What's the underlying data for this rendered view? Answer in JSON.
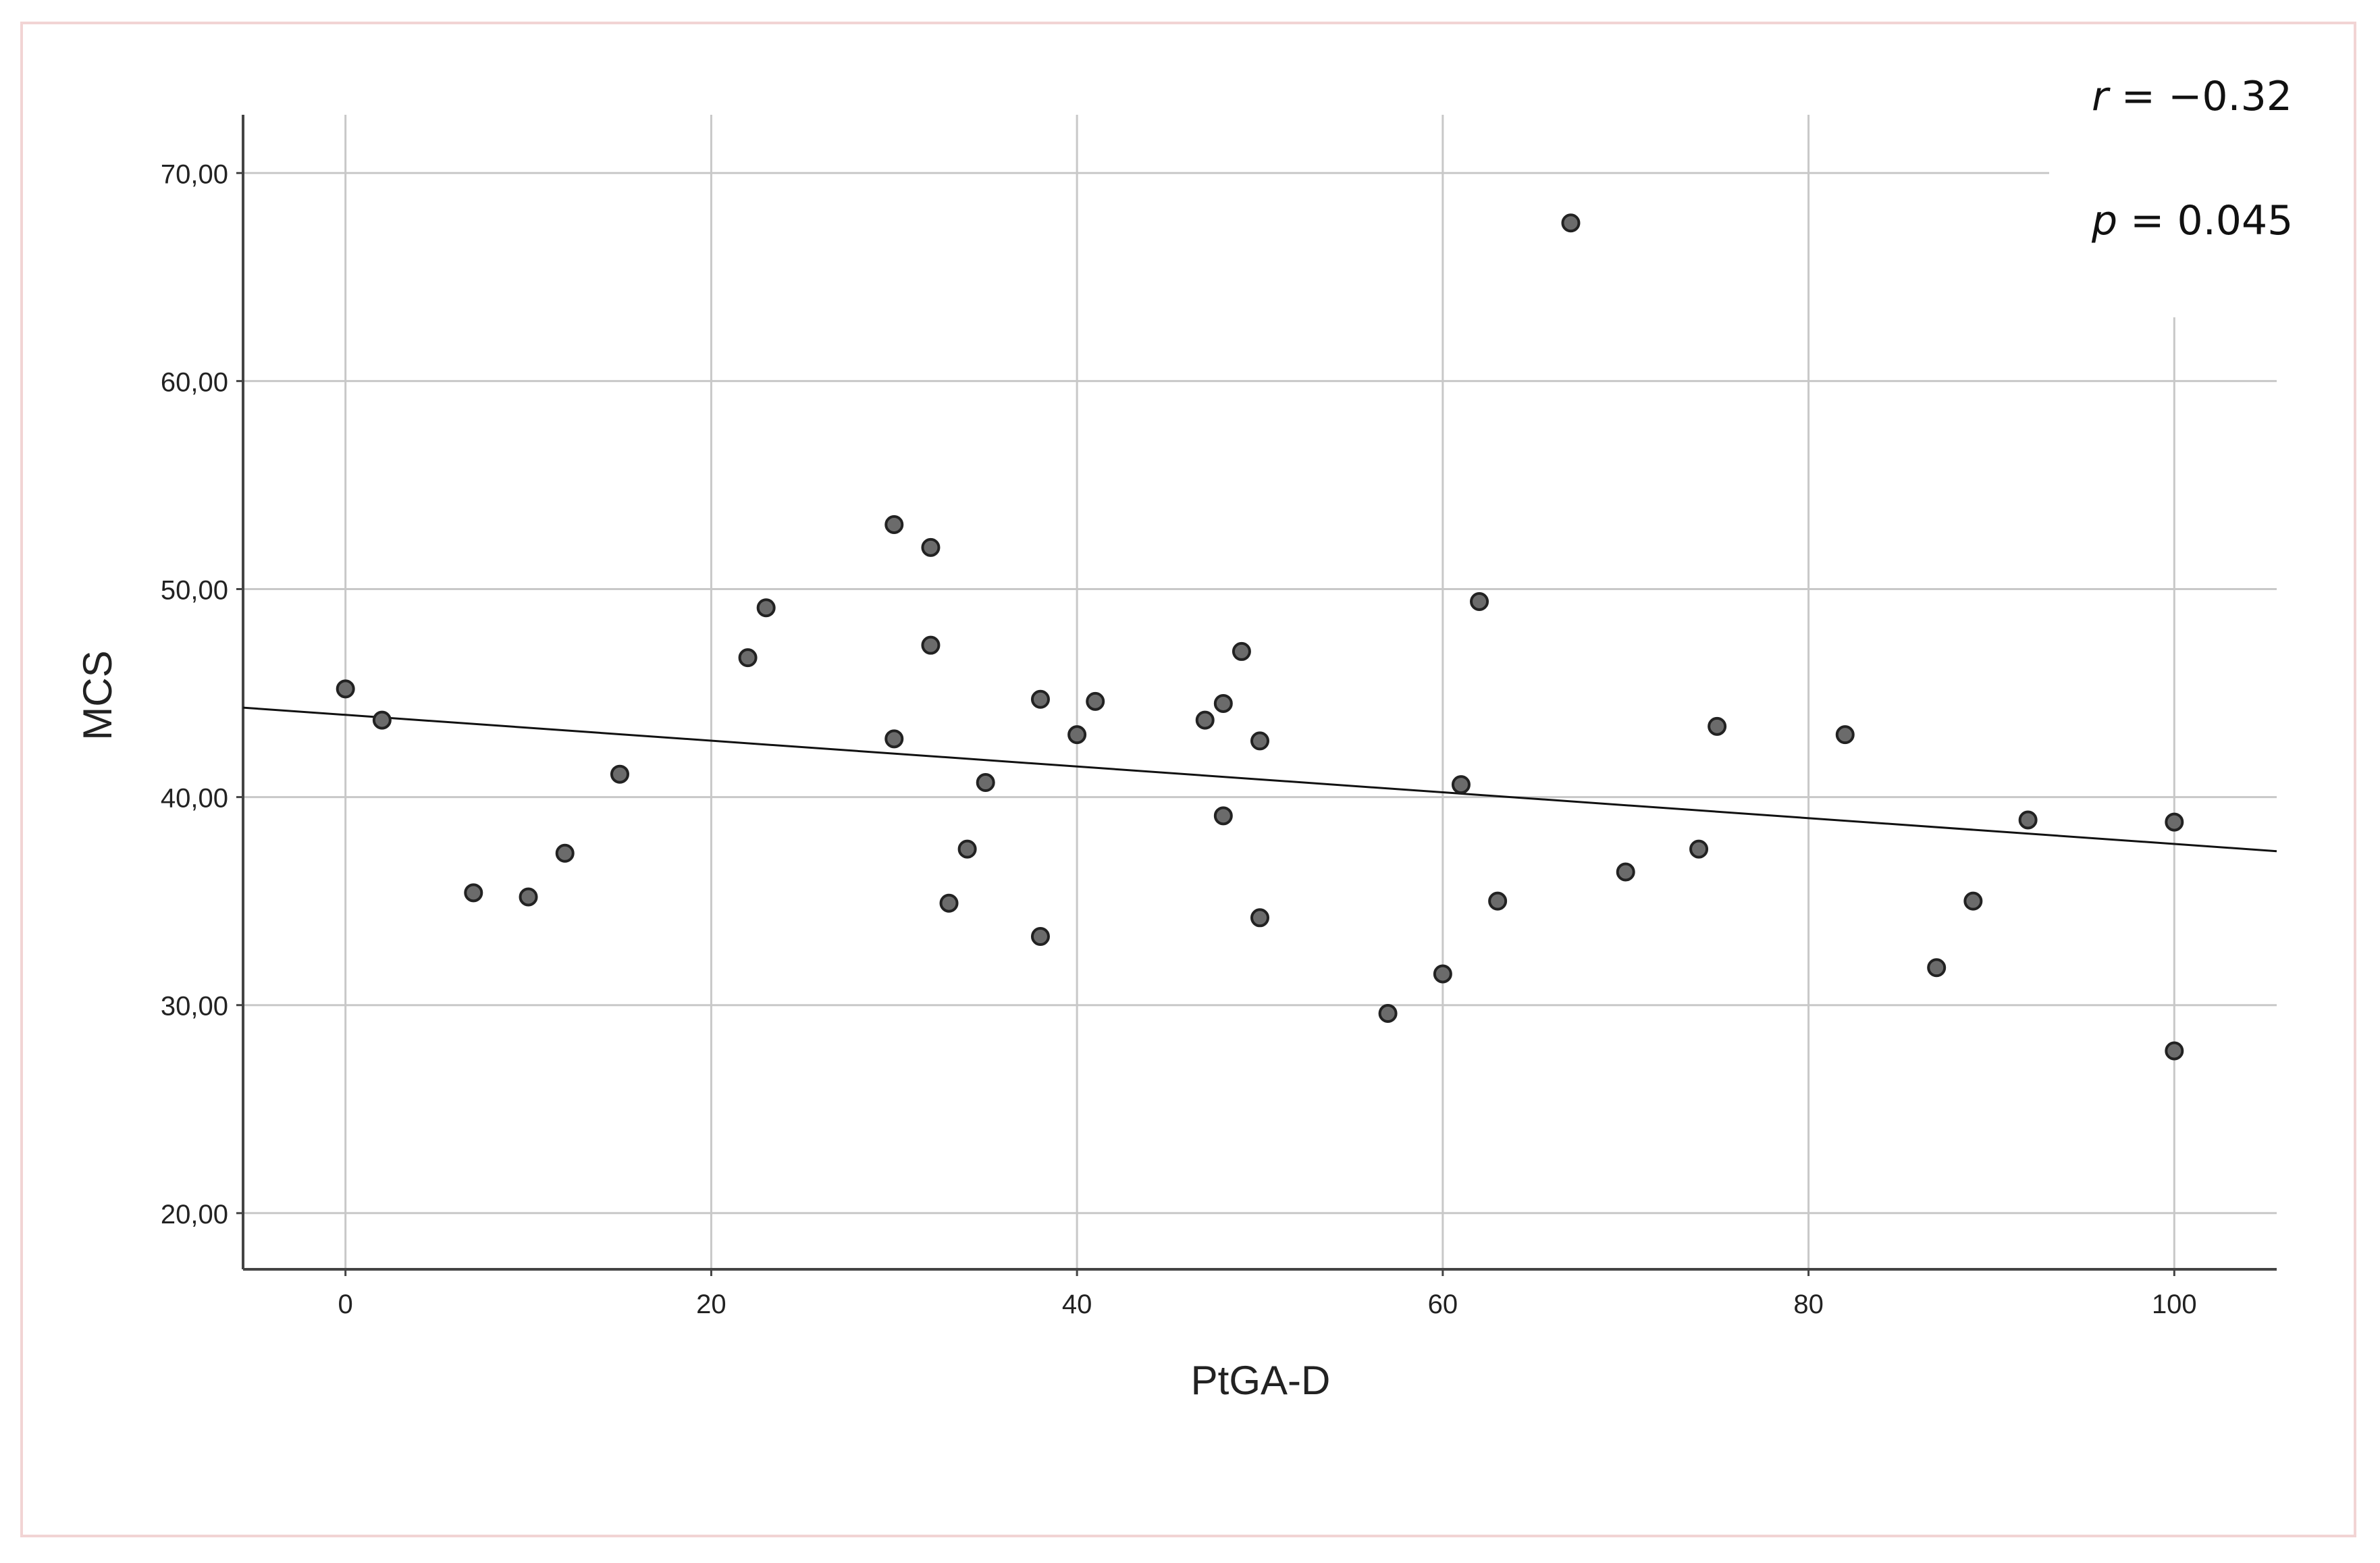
{
  "chart_data": {
    "type": "scatter",
    "xlabel": "PtGA-D",
    "ylabel": "MCS",
    "x_ticks": [
      "0",
      "20",
      "40",
      "60",
      "80",
      "100"
    ],
    "y_ticks": [
      "20,00",
      "30,00",
      "40,00",
      "50,00",
      "60,00",
      "70,00"
    ],
    "xlim": [
      -5.6,
      105.6
    ],
    "ylim": [
      17.3,
      72.8
    ],
    "grid": true,
    "annotations": {
      "r_label": "r",
      "r_value": "= −0.32",
      "p_label": "p",
      "p_value": "= 0.045"
    },
    "fit_line": {
      "x": [
        -5.6,
        105.6
      ],
      "y": [
        44.3,
        37.4
      ]
    },
    "point_color": "#6b6b6b",
    "points": [
      {
        "x": 0,
        "y": 45.2
      },
      {
        "x": 2,
        "y": 43.7
      },
      {
        "x": 7,
        "y": 35.4
      },
      {
        "x": 10,
        "y": 35.2
      },
      {
        "x": 12,
        "y": 37.3
      },
      {
        "x": 15,
        "y": 41.1
      },
      {
        "x": 22,
        "y": 46.7
      },
      {
        "x": 23,
        "y": 49.1
      },
      {
        "x": 30,
        "y": 53.1
      },
      {
        "x": 30,
        "y": 42.8
      },
      {
        "x": 32,
        "y": 52.0
      },
      {
        "x": 32,
        "y": 47.3
      },
      {
        "x": 33,
        "y": 34.9
      },
      {
        "x": 34,
        "y": 37.5
      },
      {
        "x": 35,
        "y": 40.7
      },
      {
        "x": 38,
        "y": 44.7
      },
      {
        "x": 38,
        "y": 33.3
      },
      {
        "x": 40,
        "y": 43.0
      },
      {
        "x": 41,
        "y": 44.6
      },
      {
        "x": 47,
        "y": 43.7
      },
      {
        "x": 48,
        "y": 44.5
      },
      {
        "x": 48,
        "y": 39.1
      },
      {
        "x": 49,
        "y": 47.0
      },
      {
        "x": 50,
        "y": 42.7
      },
      {
        "x": 50,
        "y": 34.2
      },
      {
        "x": 57,
        "y": 29.6
      },
      {
        "x": 60,
        "y": 31.5
      },
      {
        "x": 61,
        "y": 40.6
      },
      {
        "x": 62,
        "y": 49.4
      },
      {
        "x": 63,
        "y": 35.0
      },
      {
        "x": 67,
        "y": 67.6
      },
      {
        "x": 70,
        "y": 36.4
      },
      {
        "x": 74,
        "y": 37.5
      },
      {
        "x": 75,
        "y": 43.4
      },
      {
        "x": 82,
        "y": 43.0
      },
      {
        "x": 87,
        "y": 31.8
      },
      {
        "x": 89,
        "y": 35.0
      },
      {
        "x": 92,
        "y": 38.9
      },
      {
        "x": 100,
        "y": 38.8
      },
      {
        "x": 100,
        "y": 27.8
      }
    ]
  }
}
